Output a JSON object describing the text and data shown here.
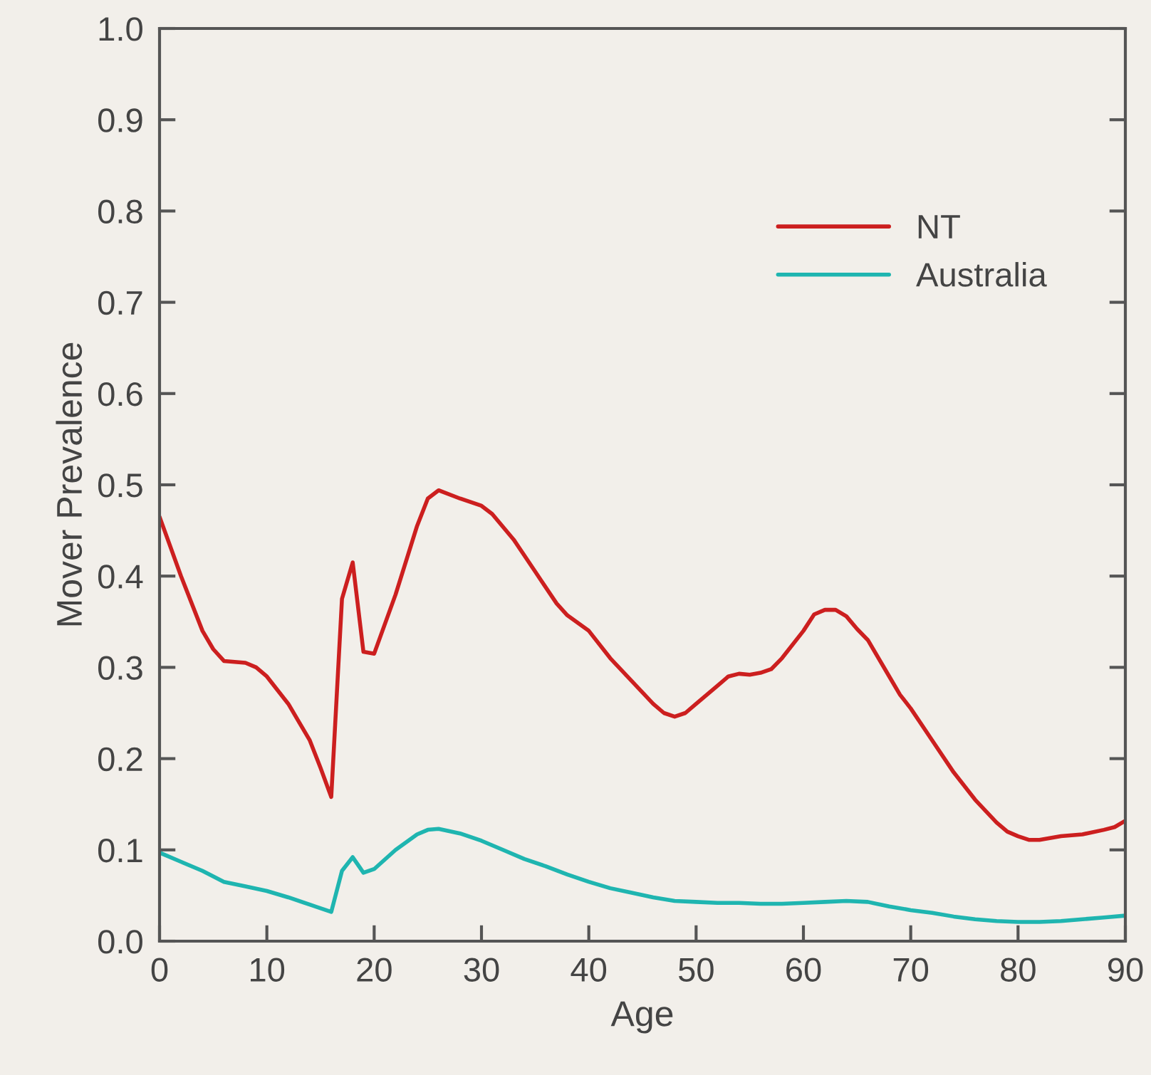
{
  "chart_data": {
    "type": "line",
    "xlabel": "Age",
    "ylabel": "Mover Prevalence",
    "xlim": [
      0,
      90
    ],
    "xticks": [
      0,
      10,
      20,
      30,
      40,
      50,
      60,
      70,
      80,
      90
    ],
    "ylim": [
      0,
      1.0
    ],
    "yticks": [
      {
        "value": 0,
        "label": "0.0"
      },
      0.1,
      0.2,
      0.3,
      0.4,
      0.5,
      0.6,
      0.7,
      0.8,
      0.9,
      {
        "value": 1.0,
        "label": "1.0"
      }
    ],
    "grid": false,
    "legend": "top right",
    "marker": "none",
    "line_style": "solid",
    "series": [
      {
        "name": "NT",
        "color": "#cc1f1f",
        "x": [
          0,
          2,
          4,
          5,
          6,
          8,
          9,
          10,
          12,
          14,
          15,
          16,
          17,
          18,
          19,
          20,
          22,
          24,
          25,
          26,
          28,
          30,
          31,
          33,
          35,
          37,
          38,
          40,
          42,
          44,
          46,
          47,
          48,
          49,
          50,
          52,
          53,
          54,
          55,
          56,
          57,
          58,
          60,
          61,
          62,
          63,
          64,
          65,
          66,
          68,
          69,
          70,
          72,
          74,
          76,
          78,
          79,
          80,
          81,
          82,
          84,
          86,
          88,
          89,
          90
        ],
        "values": [
          0.465,
          0.4,
          0.34,
          0.32,
          0.307,
          0.305,
          0.3,
          0.29,
          0.26,
          0.22,
          0.19,
          0.158,
          0.375,
          0.415,
          0.317,
          0.315,
          0.38,
          0.455,
          0.485,
          0.494,
          0.485,
          0.477,
          0.468,
          0.44,
          0.405,
          0.37,
          0.357,
          0.34,
          0.31,
          0.285,
          0.26,
          0.25,
          0.246,
          0.25,
          0.26,
          0.28,
          0.29,
          0.293,
          0.292,
          0.294,
          0.298,
          0.31,
          0.34,
          0.358,
          0.363,
          0.363,
          0.356,
          0.342,
          0.33,
          0.29,
          0.27,
          0.255,
          0.22,
          0.185,
          0.155,
          0.13,
          0.12,
          0.115,
          0.111,
          0.111,
          0.115,
          0.117,
          0.122,
          0.125,
          0.132
        ]
      },
      {
        "name": "Australia",
        "color": "#1fb5b0",
        "x": [
          0,
          2,
          4,
          6,
          8,
          10,
          12,
          14,
          16,
          17,
          18,
          19,
          20,
          22,
          24,
          25,
          26,
          28,
          30,
          32,
          34,
          36,
          38,
          40,
          42,
          44,
          46,
          48,
          50,
          52,
          54,
          56,
          58,
          60,
          62,
          64,
          66,
          68,
          70,
          72,
          74,
          76,
          78,
          80,
          82,
          84,
          86,
          88,
          90
        ],
        "values": [
          0.097,
          0.087,
          0.077,
          0.065,
          0.06,
          0.055,
          0.048,
          0.04,
          0.032,
          0.077,
          0.092,
          0.075,
          0.079,
          0.1,
          0.117,
          0.122,
          0.123,
          0.118,
          0.11,
          0.1,
          0.09,
          0.082,
          0.073,
          0.065,
          0.058,
          0.053,
          0.048,
          0.044,
          0.043,
          0.042,
          0.042,
          0.041,
          0.041,
          0.042,
          0.043,
          0.044,
          0.043,
          0.038,
          0.034,
          0.031,
          0.027,
          0.024,
          0.022,
          0.021,
          0.021,
          0.022,
          0.024,
          0.026,
          0.028
        ]
      }
    ]
  }
}
